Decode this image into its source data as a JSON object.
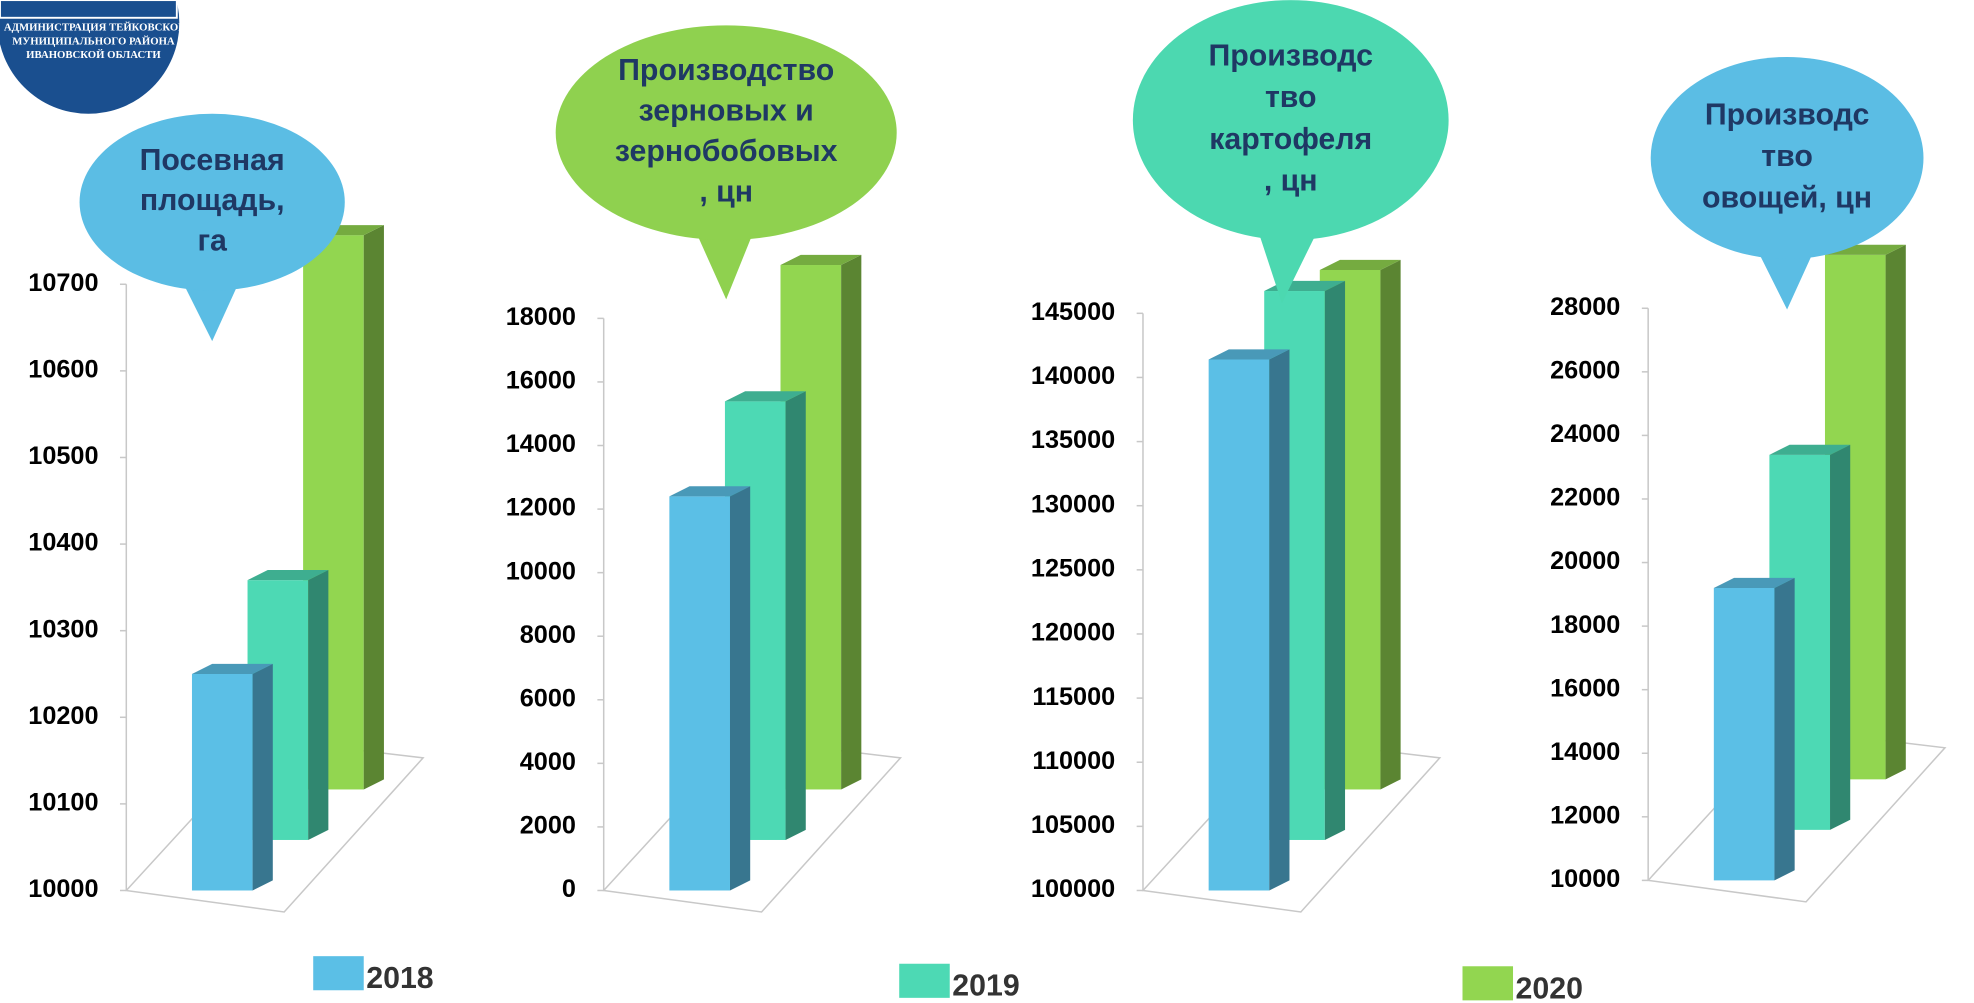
{
  "logo": {
    "lines": [
      "АДМИНИСТРАЦИЯ ТЕЙКОВСКОГО",
      "МУНИЦИПАЛЬНОГО РАЙОНА",
      "ИВАНОВСКОЙ ОБЛАСТИ"
    ]
  },
  "legend": [
    {
      "name": "2018",
      "color": "#5bbfe6"
    },
    {
      "name": "2019",
      "color": "#4dd9b4"
    },
    {
      "name": "2020",
      "color": "#92d650"
    }
  ],
  "chart_data": [
    {
      "type": "bar",
      "title": [
        "Посевная",
        "площадь,",
        "га"
      ],
      "bubble_color": "#5bbde4",
      "values": [
        10250,
        10300,
        10640
      ],
      "ylim": [
        10000,
        10700
      ],
      "yticks": [
        10000,
        10100,
        10200,
        10300,
        10400,
        10500,
        10600,
        10700
      ]
    },
    {
      "type": "bar",
      "title": [
        "Производство",
        "зерновых и",
        "зернобобовых",
        ", цн"
      ],
      "bubble_color": "#8fd14f",
      "values": [
        12400,
        13800,
        16500
      ],
      "ylim": [
        0,
        18000
      ],
      "yticks": [
        0,
        2000,
        4000,
        6000,
        8000,
        10000,
        12000,
        14000,
        16000,
        18000
      ]
    },
    {
      "type": "bar",
      "title": [
        "Производс",
        "тво",
        "картофеля",
        ", цн"
      ],
      "bubble_color": "#4cd8b0",
      "values": [
        141400,
        142800,
        140500
      ],
      "ylim": [
        100000,
        145000
      ],
      "yticks": [
        100000,
        105000,
        110000,
        115000,
        120000,
        125000,
        130000,
        135000,
        140000,
        145000
      ]
    },
    {
      "type": "bar",
      "title": [
        "Производс",
        "тво",
        "овощей, цн"
      ],
      "bubble_color": "#5bbde4",
      "values": [
        19200,
        21800,
        26500
      ],
      "ylim": [
        10000,
        28000
      ],
      "yticks": [
        10000,
        12000,
        14000,
        16000,
        18000,
        20000,
        22000,
        24000,
        26000,
        28000
      ]
    }
  ]
}
